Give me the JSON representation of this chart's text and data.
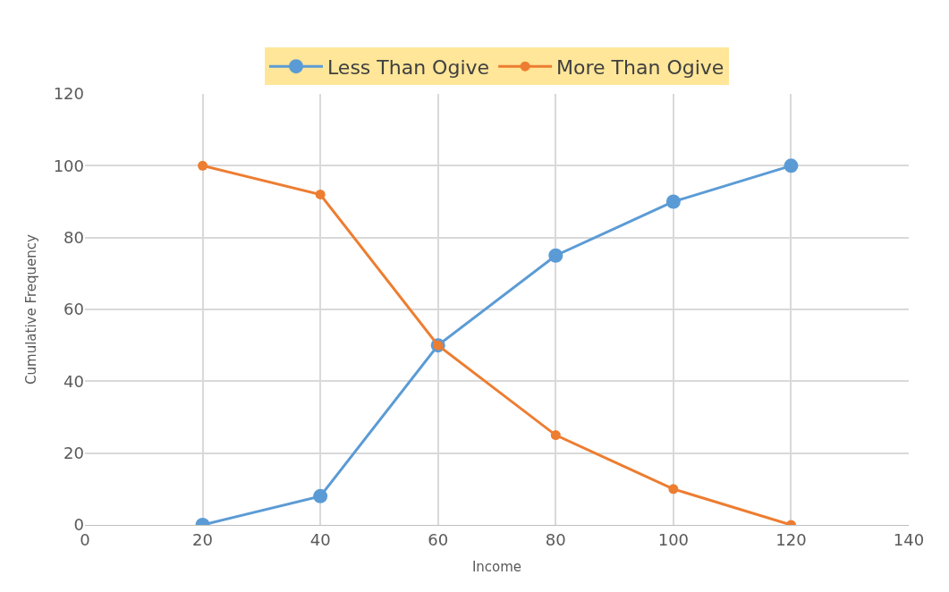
{
  "chart_data": {
    "type": "line",
    "xlabel": "Income",
    "ylabel": "Cumulative Frequency",
    "x": [
      20,
      40,
      60,
      80,
      100,
      120
    ],
    "series": [
      {
        "name": "Less Than Ogive",
        "color": "#5b9bd5",
        "values": [
          0,
          8,
          50,
          75,
          90,
          100
        ]
      },
      {
        "name": "More Than Ogive",
        "color": "#ed7d31",
        "values": [
          100,
          92,
          50,
          25,
          10,
          0
        ]
      }
    ],
    "xlim": [
      0,
      140
    ],
    "xticks": [
      0,
      20,
      40,
      60,
      80,
      100,
      120,
      140
    ],
    "ylim": [
      0,
      120
    ],
    "yticks": [
      0,
      20,
      40,
      60,
      80,
      100,
      120
    ],
    "grid": true,
    "legend": "top",
    "marker": "circle",
    "line_style": "solid"
  }
}
